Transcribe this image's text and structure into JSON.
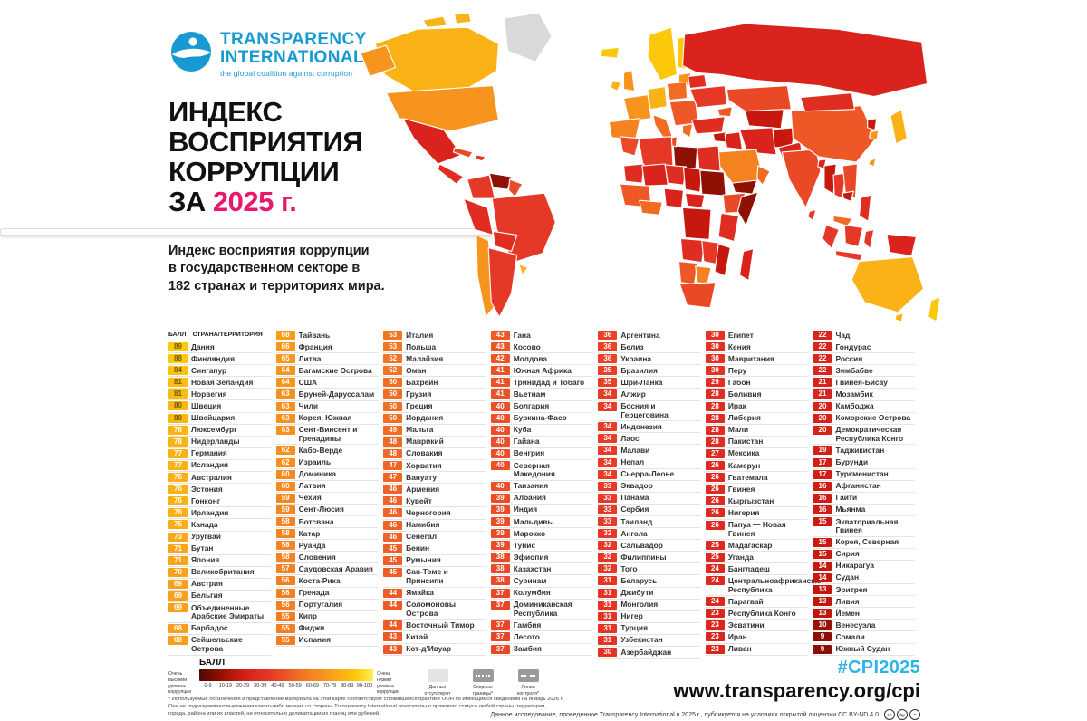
{
  "header": {
    "logo_line1": "TRANSPARENCY",
    "logo_line2": "INTERNATIONAL",
    "logo_tagline": "the global coalition against corruption",
    "logo_color": "#1799d1",
    "title_main": "ИНДЕКС\nВОСПРИЯТИЯ\nКОРРУПЦИИ",
    "title_prefix": "ЗА ",
    "title_year": "2025 г.",
    "year_color": "#e8186d",
    "subtitle": "Индекс восприятия коррупции\nв государственном секторе в\n182 странах и территориях мира."
  },
  "table": {
    "header_score": "БАЛЛ",
    "header_country": "СТРАНА/ТЕРРИТОРИЯ"
  },
  "chart_data": {
    "type": "choropleth",
    "title": "Индекс восприятия коррупции за 2025 г.",
    "value_range": [
      0,
      100
    ],
    "legend_buckets": [
      "0-9",
      "10-19",
      "20-29",
      "30-39",
      "40-49",
      "50-59",
      "60-69",
      "70-79",
      "80-89",
      "90-100"
    ],
    "low_end_label": "Очень высокий уровень коррупции",
    "high_end_label": "Очень низкий уровень коррупции",
    "color_scale": [
      [
        0,
        "#5f0a03"
      ],
      [
        9,
        "#8a1005"
      ],
      [
        13,
        "#c0160c"
      ],
      [
        16,
        "#cf1d15"
      ],
      [
        22,
        "#da251d"
      ],
      [
        28,
        "#e02d22"
      ],
      [
        33,
        "#e63a26"
      ],
      [
        38,
        "#ea4827"
      ],
      [
        43,
        "#ee5726"
      ],
      [
        47,
        "#f06524"
      ],
      [
        53,
        "#f37722"
      ],
      [
        58,
        "#f58420"
      ],
      [
        63,
        "#f7911e"
      ],
      [
        68,
        "#f99e1b"
      ],
      [
        73,
        "#faa918"
      ],
      [
        78,
        "#fbb414"
      ],
      [
        84,
        "#fcc10b"
      ],
      [
        89,
        "#fdca03"
      ],
      [
        100,
        "#ffe43c"
      ]
    ],
    "columns": [
      [
        [
          89,
          "Дания"
        ],
        [
          88,
          "Финляндия"
        ],
        [
          84,
          "Сингапур"
        ],
        [
          81,
          "Новая Зеландия"
        ],
        [
          81,
          "Норвегия"
        ],
        [
          80,
          "Швеция"
        ],
        [
          80,
          "Швейцария"
        ],
        [
          78,
          "Люксембург"
        ],
        [
          78,
          "Нидерланды"
        ],
        [
          77,
          "Германия"
        ],
        [
          77,
          "Исландия"
        ],
        [
          76,
          "Австралия"
        ],
        [
          76,
          "Эстония"
        ],
        [
          76,
          "Гонконг"
        ],
        [
          76,
          "Ирландия"
        ],
        [
          75,
          "Канада"
        ],
        [
          73,
          "Уругвай"
        ],
        [
          71,
          "Бутан"
        ],
        [
          71,
          "Япония"
        ],
        [
          70,
          "Великобритания"
        ],
        [
          69,
          "Австрия"
        ],
        [
          69,
          "Бельгия"
        ],
        [
          69,
          "Объединенные Арабские Эмираты"
        ],
        [
          68,
          "Барбадос"
        ],
        [
          68,
          "Сейшельские Острова"
        ]
      ],
      [
        [
          68,
          "Тайвань"
        ],
        [
          66,
          "Франция"
        ],
        [
          65,
          "Литва"
        ],
        [
          64,
          "Багамские Острова"
        ],
        [
          64,
          "США"
        ],
        [
          63,
          "Бруней-Даруссалам"
        ],
        [
          63,
          "Чили"
        ],
        [
          63,
          "Корея, Южная"
        ],
        [
          63,
          "Сент-Винсент и Гренадины"
        ],
        [
          62,
          "Кабо-Верде"
        ],
        [
          62,
          "Израиль"
        ],
        [
          60,
          "Доминика"
        ],
        [
          60,
          "Латвия"
        ],
        [
          59,
          "Чехия"
        ],
        [
          59,
          "Сент-Люсия"
        ],
        [
          58,
          "Ботсвана"
        ],
        [
          58,
          "Катар"
        ],
        [
          58,
          "Руанда"
        ],
        [
          58,
          "Словения"
        ],
        [
          57,
          "Саудовская Аравия"
        ],
        [
          56,
          "Коста-Рика"
        ],
        [
          56,
          "Гренада"
        ],
        [
          56,
          "Португалия"
        ],
        [
          55,
          "Кипр"
        ],
        [
          55,
          "Фиджи"
        ],
        [
          55,
          "Испания"
        ]
      ],
      [
        [
          53,
          "Италия"
        ],
        [
          53,
          "Польша"
        ],
        [
          52,
          "Малайзия"
        ],
        [
          52,
          "Оман"
        ],
        [
          50,
          "Бахрейн"
        ],
        [
          50,
          "Грузия"
        ],
        [
          50,
          "Греция"
        ],
        [
          50,
          "Иордания"
        ],
        [
          49,
          "Мальта"
        ],
        [
          48,
          "Маврикий"
        ],
        [
          48,
          "Словакия"
        ],
        [
          47,
          "Хорватия"
        ],
        [
          47,
          "Вануату"
        ],
        [
          46,
          "Армения"
        ],
        [
          46,
          "Кувейт"
        ],
        [
          46,
          "Черногория"
        ],
        [
          46,
          "Намибия"
        ],
        [
          46,
          "Сенегал"
        ],
        [
          45,
          "Бенин"
        ],
        [
          45,
          "Румыния"
        ],
        [
          45,
          "Сан-Томе и Принсипи"
        ],
        [
          44,
          "Ямайка"
        ],
        [
          44,
          "Соломоновы Острова"
        ],
        [
          44,
          "Восточный Тимор"
        ],
        [
          43,
          "Китай"
        ],
        [
          43,
          "Кот-д’Ивуар"
        ]
      ],
      [
        [
          43,
          "Гана"
        ],
        [
          43,
          "Косово"
        ],
        [
          42,
          "Молдова"
        ],
        [
          41,
          "Южная Африка"
        ],
        [
          41,
          "Тринидад и Тобаго"
        ],
        [
          41,
          "Вьетнам"
        ],
        [
          40,
          "Болгария"
        ],
        [
          40,
          "Буркина-Фасо"
        ],
        [
          40,
          "Куба"
        ],
        [
          40,
          "Гайана"
        ],
        [
          40,
          "Венгрия"
        ],
        [
          40,
          "Северная Македония"
        ],
        [
          40,
          "Танзания"
        ],
        [
          39,
          "Албания"
        ],
        [
          39,
          "Индия"
        ],
        [
          39,
          "Мальдивы"
        ],
        [
          39,
          "Марокко"
        ],
        [
          39,
          "Тунис"
        ],
        [
          38,
          "Эфиопия"
        ],
        [
          38,
          "Казахстан"
        ],
        [
          38,
          "Суринам"
        ],
        [
          37,
          "Колумбия"
        ],
        [
          37,
          "Доминиканская Республика"
        ],
        [
          37,
          "Гамбия"
        ],
        [
          37,
          "Лесото"
        ],
        [
          37,
          "Замбия"
        ]
      ],
      [
        [
          36,
          "Аргентина"
        ],
        [
          36,
          "Белиз"
        ],
        [
          36,
          "Украина"
        ],
        [
          35,
          "Бразилия"
        ],
        [
          35,
          "Шри-Ланка"
        ],
        [
          34,
          "Алжир"
        ],
        [
          34,
          "Босния и Герцеговина"
        ],
        [
          34,
          "Индонезия"
        ],
        [
          34,
          "Лаос"
        ],
        [
          34,
          "Малави"
        ],
        [
          34,
          "Непал"
        ],
        [
          34,
          "Сьерра-Леоне"
        ],
        [
          33,
          "Эквадор"
        ],
        [
          33,
          "Панама"
        ],
        [
          33,
          "Сербия"
        ],
        [
          33,
          "Таиланд"
        ],
        [
          32,
          "Ангола"
        ],
        [
          32,
          "Сальвадор"
        ],
        [
          32,
          "Филиппины"
        ],
        [
          32,
          "Того"
        ],
        [
          31,
          "Беларусь"
        ],
        [
          31,
          "Джибути"
        ],
        [
          31,
          "Монголия"
        ],
        [
          31,
          "Нигер"
        ],
        [
          31,
          "Турция"
        ],
        [
          31,
          "Узбекистан"
        ],
        [
          30,
          "Азербайджан"
        ]
      ],
      [
        [
          30,
          "Египет"
        ],
        [
          30,
          "Кения"
        ],
        [
          30,
          "Мавритания"
        ],
        [
          30,
          "Перу"
        ],
        [
          29,
          "Габон"
        ],
        [
          28,
          "Боливия"
        ],
        [
          28,
          "Ирак"
        ],
        [
          28,
          "Либерия"
        ],
        [
          28,
          "Мали"
        ],
        [
          28,
          "Пакистан"
        ],
        [
          27,
          "Мексика"
        ],
        [
          26,
          "Камерун"
        ],
        [
          26,
          "Гватемала"
        ],
        [
          26,
          "Гвинея"
        ],
        [
          26,
          "Кыргызстан"
        ],
        [
          26,
          "Нигерия"
        ],
        [
          26,
          "Папуа — Новая Гвинея"
        ],
        [
          25,
          "Мадагаскар"
        ],
        [
          25,
          "Уганда"
        ],
        [
          24,
          "Бангладеш"
        ],
        [
          24,
          "Центральноафриканская Республика"
        ],
        [
          24,
          "Парагвай"
        ],
        [
          23,
          "Республика Конго"
        ],
        [
          23,
          "Эсватини"
        ],
        [
          23,
          "Иран"
        ],
        [
          23,
          "Ливан"
        ]
      ],
      [
        [
          22,
          "Чад"
        ],
        [
          22,
          "Гондурас"
        ],
        [
          22,
          "Россия"
        ],
        [
          22,
          "Зимбабве"
        ],
        [
          21,
          "Гвинея-Бисау"
        ],
        [
          21,
          "Мозамбик"
        ],
        [
          20,
          "Камбоджа"
        ],
        [
          20,
          "Коморские Острова"
        ],
        [
          20,
          "Демократическая Республика Конго"
        ],
        [
          19,
          "Таджикистан"
        ],
        [
          17,
          "Бурунди"
        ],
        [
          17,
          "Туркменистан"
        ],
        [
          16,
          "Афганистан"
        ],
        [
          16,
          "Гаити"
        ],
        [
          16,
          "Мьянма"
        ],
        [
          15,
          "Экваториальная Гвинея"
        ],
        [
          15,
          "Корея, Северная"
        ],
        [
          15,
          "Сирия"
        ],
        [
          14,
          "Никарагуа"
        ],
        [
          14,
          "Судан"
        ],
        [
          13,
          "Эритрея"
        ],
        [
          13,
          "Ливия"
        ],
        [
          13,
          "Йемен"
        ],
        [
          10,
          "Венесуэла"
        ],
        [
          9,
          "Сомали"
        ],
        [
          9,
          "Южный Судан"
        ]
      ]
    ]
  },
  "legend": {
    "title": "БАЛЛ",
    "left_label": "Очень\nвысокий\nуровень\nкоррупции",
    "right_label": "Очень\nнизкий\nуровень\nкоррупции",
    "ticks": [
      "0-9",
      "10-19",
      "20-29",
      "30-39",
      "40-49",
      "50-59",
      "60-69",
      "70-79",
      "80-89",
      "90-100"
    ],
    "boxes": [
      {
        "label": "Данные\nотсутствуют",
        "style": "nodata"
      },
      {
        "label": "Спорные\nграницы*",
        "style": "disputed"
      },
      {
        "label": "Линии\nконтроля*",
        "style": "control"
      }
    ]
  },
  "footer": {
    "hashtag": "#CPI2025",
    "hashtag_color": "#2db3e8",
    "url": "www.transparency.org/cpi",
    "license": "Данное исследование, проведенное Transparency International в 2025 г., публикуется на условиях открытой лицензии CC BY-ND 4.0",
    "cc_icons": [
      "cc",
      "by",
      "="
    ],
    "disclaimer": "* Используемые обозначения и представление материала на этой карте соответствуют сложившейся практике ООН по имеющимся сведениям на январь 2026 г. Они не подразумевают выражения какого-либо мнения со стороны Transparency International относительно правового статуса любой страны, территории, города, района или их властей, ни относительно делимитации их границ или рубежей."
  }
}
